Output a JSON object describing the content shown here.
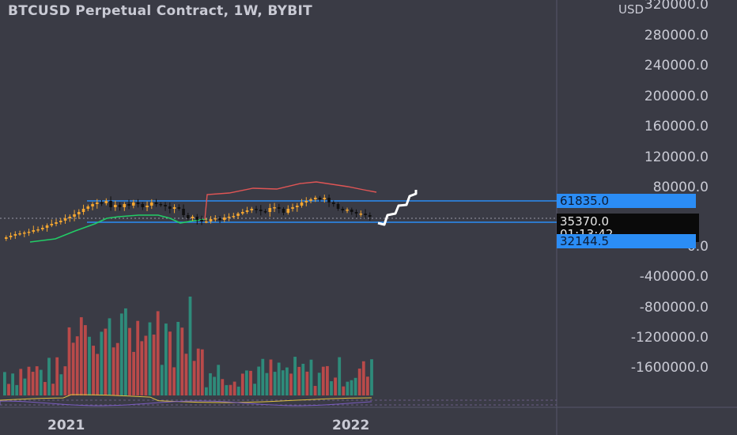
{
  "title": "BTCUSD Perpetual Contract, 1W, BYBIT",
  "currency_label": "USD",
  "price_axis": [
    "320000.0",
    "280000.0",
    "240000.0",
    "200000.0",
    "160000.0",
    "120000.0",
    "80000.0",
    "0.0",
    "-400000.0",
    "-800000.0",
    "-1200000.0",
    "-1600000.0"
  ],
  "markers": {
    "upper_level": "61835.0",
    "current_price": "35370.0",
    "countdown": "01:13:42",
    "lower_level": "32144.5"
  },
  "time_axis": [
    "2021",
    "2022"
  ],
  "colors": {
    "background": "#3a3b45",
    "up_candle": "#f2a531",
    "down_candle": "#101010",
    "level_line": "#2b8df5",
    "red_line": "#e05555",
    "green_line": "#22cc66",
    "projection": "#ffffff",
    "volume_up": "#2e8b7a",
    "volume_down": "#b94a4a",
    "osc_yellow": "#e0c040",
    "osc_purple": "#7a5cc0"
  }
}
